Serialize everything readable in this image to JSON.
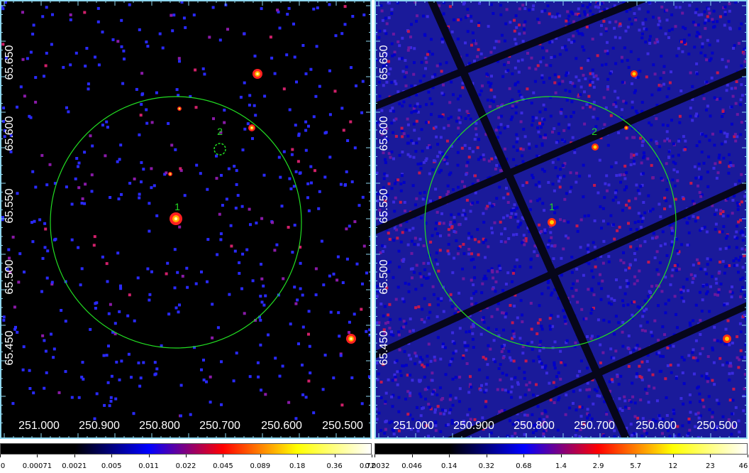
{
  "panels": [
    {
      "id": "left",
      "x_ticks": [
        "251.000",
        "250.900",
        "250.800",
        "250.700",
        "250.600",
        "250.500"
      ],
      "y_ticks": [
        "65.650",
        "65.600",
        "65.550",
        "65.500",
        "65.450"
      ],
      "sources": [
        {
          "label": "1"
        },
        {
          "label": "2"
        }
      ],
      "colorbar_ticks": [
        "0",
        "0.00071",
        "0.0021",
        "0.005",
        "0.011",
        "0.022",
        "0.045",
        "0.089",
        "0.18",
        "0.36",
        "0.72"
      ],
      "colorbar_colors": [
        "#000000",
        "#000000",
        "#0000ff",
        "#ff0000",
        "#ffff00",
        "#ffffff"
      ]
    },
    {
      "id": "right",
      "x_ticks": [
        "251.000",
        "250.900",
        "250.800",
        "250.700",
        "250.600",
        "250.500"
      ],
      "y_ticks": [
        "65.650",
        "65.600",
        "65.550",
        "65.500",
        "65.450"
      ],
      "sources": [
        {
          "label": "1"
        },
        {
          "label": "2"
        }
      ],
      "colorbar_ticks": [
        "0.0032",
        "0.046",
        "0.14",
        "0.32",
        "0.68",
        "1.4",
        "2.9",
        "5.7",
        "12",
        "23",
        "46"
      ],
      "colorbar_colors": [
        "#000000",
        "#000000",
        "#0000ff",
        "#ff0000",
        "#ffff00",
        "#ffffff"
      ]
    }
  ],
  "region_color": "#22dd22",
  "axis_color": "#8fd8f0"
}
